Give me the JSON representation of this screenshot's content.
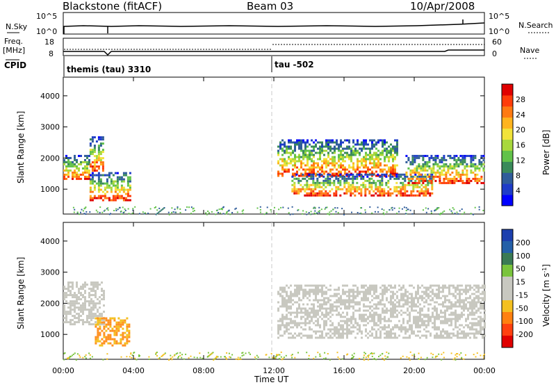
{
  "header": {
    "station": "Blackstone (fitACF)",
    "beam": "Beam 03",
    "date": "10/Apr/2008"
  },
  "noise_panel": {
    "left_label": "N.Sky",
    "left_ticks": [
      "10^5",
      "10^0"
    ],
    "right_label": "N.Search",
    "right_ticks": [
      "10^5",
      "10^0"
    ]
  },
  "freq_panel": {
    "left_label_top": "Freq.",
    "left_label_bottom": "[MHz]",
    "left_ticks": [
      "18",
      "8"
    ],
    "right_label": "Nave",
    "right_ticks": [
      "60",
      "0"
    ]
  },
  "cpid_panel": {
    "label": "CPID",
    "segments": [
      {
        "start": 0.0,
        "name": "themis (tau) 3310"
      },
      {
        "start": 12.0,
        "name": "tau -502"
      }
    ]
  },
  "chart_data": [
    {
      "type": "heatmap",
      "panel": "power",
      "xlabel": "Time UT",
      "ylabel": "Slant Range [km]",
      "xlim": [
        0,
        24
      ],
      "ylim": [
        200,
        4600
      ],
      "y_ticks": [
        "1000",
        "2000",
        "3000",
        "4000"
      ],
      "colorbar_label": "Power [dB]",
      "colorbar_ticks": [
        "4",
        "8",
        "12",
        "16",
        "20",
        "24",
        "28"
      ],
      "colorbar_colors": [
        "#0000ff",
        "#1e3cc8",
        "#2f5c9a",
        "#3a8a5a",
        "#62c24a",
        "#a8d83c",
        "#f2e33a",
        "#ffb41e",
        "#ff7a12",
        "#ff3c0a",
        "#e00000"
      ],
      "echo_regions": [
        {
          "t0": 0.0,
          "t1": 1.5,
          "r0": 1300,
          "r1": 2100
        },
        {
          "t0": 1.5,
          "t1": 2.3,
          "r0": 1600,
          "r1": 2700
        },
        {
          "t0": 1.5,
          "t1": 3.8,
          "r0": 650,
          "r1": 1550
        },
        {
          "t0": 12.2,
          "t1": 19.0,
          "r0": 1400,
          "r1": 2600
        },
        {
          "t0": 13.0,
          "t1": 21.0,
          "r0": 800,
          "r1": 1500
        },
        {
          "t0": 19.5,
          "t1": 24.0,
          "r0": 1200,
          "r1": 2100
        }
      ]
    },
    {
      "type": "heatmap",
      "panel": "velocity",
      "xlabel": "Time UT",
      "ylabel": "Slant Range [km]",
      "xlim": [
        0,
        24
      ],
      "ylim": [
        200,
        4600
      ],
      "y_ticks": [
        "1000",
        "2000",
        "3000",
        "4000"
      ],
      "colorbar_label": "Velocity [m s^-1]",
      "colorbar_ticks": [
        "200",
        "100",
        "50",
        "15",
        "-15",
        "-50",
        "-100",
        "-200"
      ],
      "colorbar_colors": [
        "#1c3fae",
        "#2460a8",
        "#3a7a54",
        "#7ac43c",
        "#c8c8c0",
        "#c8c8c0",
        "#f4c020",
        "#ff8010",
        "#ff4010",
        "#e00000"
      ],
      "ground_scatter_color": "#c8c8c0",
      "echo_regions": [
        {
          "t0": 0.0,
          "t1": 2.3,
          "r0": 1300,
          "r1": 2700,
          "kind": "gs"
        },
        {
          "t0": 1.8,
          "t1": 3.8,
          "r0": 650,
          "r1": 1550,
          "kind": "neg"
        },
        {
          "t0": 12.2,
          "t1": 24.0,
          "r0": 900,
          "r1": 2600,
          "kind": "gs"
        }
      ]
    }
  ],
  "x_ticks": [
    "00:00",
    "04:00",
    "08:00",
    "12:00",
    "16:00",
    "20:00",
    "00:00"
  ],
  "x_title": "Time UT"
}
